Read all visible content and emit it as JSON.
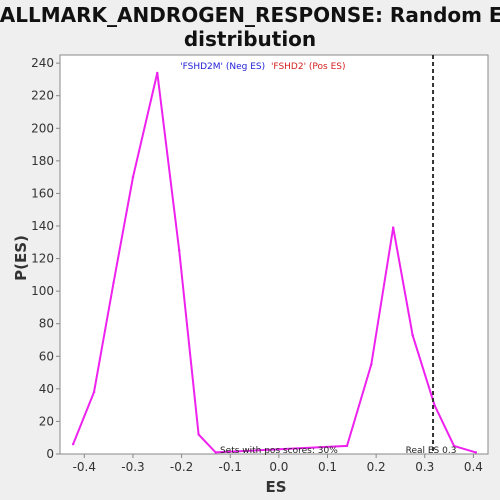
{
  "chart_data": {
    "type": "line",
    "title_line1": "HALLMARK_ANDROGEN_RESPONSE: Random ES",
    "title_line2": "distribution",
    "xlabel": "ES",
    "ylabel": "P(ES)",
    "xlim": [
      -0.45,
      0.43
    ],
    "ylim": [
      0,
      245
    ],
    "x_ticks": [
      "-0.4",
      "-0.3",
      "-0.2",
      "-0.1",
      "0.0",
      "0.1",
      "0.2",
      "0.3",
      "0.4"
    ],
    "y_ticks": [
      "0",
      "20",
      "40",
      "60",
      "80",
      "100",
      "120",
      "140",
      "160",
      "180",
      "200",
      "220",
      "240"
    ],
    "grid": false,
    "legend": {
      "placement": "top-center",
      "entries": [
        {
          "label": "'FSHD2M' (Neg ES)",
          "color": "#1f1fd6"
        },
        {
          "label": "'FSHD2' (Pos ES)",
          "color": "#d61f1f"
        }
      ]
    },
    "series": [
      {
        "color": "#ee22ee",
        "x": [
          -0.423,
          -0.38,
          -0.34,
          -0.3,
          -0.25,
          -0.205,
          -0.165,
          -0.13,
          0.14,
          0.19,
          0.235,
          0.275,
          0.32,
          0.36,
          0.405
        ],
        "y": [
          6,
          38,
          105,
          170,
          234,
          125,
          12,
          1,
          5,
          55,
          139,
          73,
          30,
          5,
          1
        ]
      }
    ],
    "real_es": {
      "x": 0.317,
      "label": "Real ES 0.3",
      "color": "#333333",
      "style": "dashed"
    },
    "annotation": "Sets with pos scores: 30%"
  }
}
